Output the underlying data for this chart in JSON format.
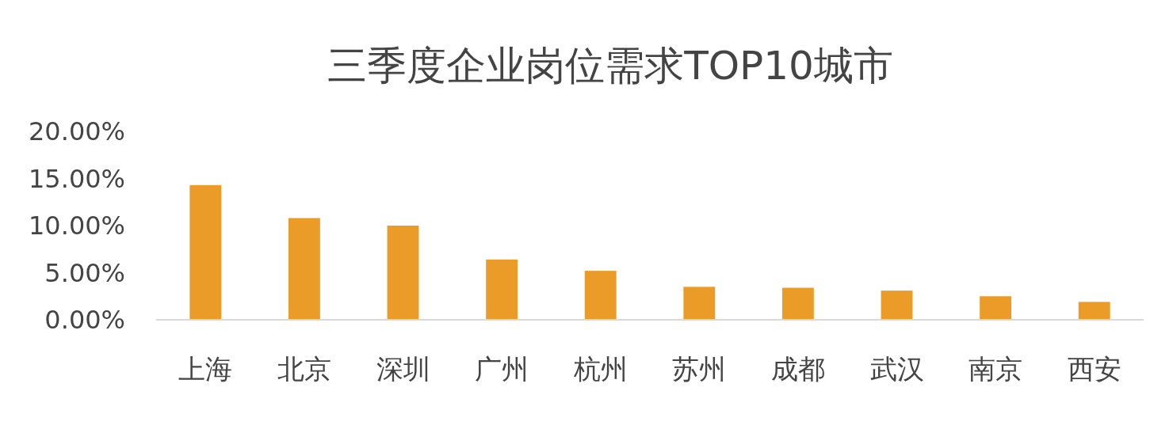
{
  "chart_data": {
    "type": "bar",
    "title": "三季度企业岗位需求TOP10城市",
    "categories": [
      "上海",
      "北京",
      "深圳",
      "广州",
      "杭州",
      "苏州",
      "成都",
      "武汉",
      "南京",
      "西安"
    ],
    "values": [
      14.3,
      10.8,
      10.0,
      6.4,
      5.2,
      3.5,
      3.4,
      3.1,
      2.5,
      1.9
    ],
    "color": "#eb9c28",
    "ylim": [
      0,
      20
    ],
    "yticks": [
      {
        "value": 0,
        "label": "0.00%"
      },
      {
        "value": 5,
        "label": "5.00%"
      },
      {
        "value": 10,
        "label": "10.00%"
      },
      {
        "value": 15,
        "label": "15.00%"
      },
      {
        "value": 20,
        "label": "20.00%"
      }
    ],
    "grid": false
  }
}
